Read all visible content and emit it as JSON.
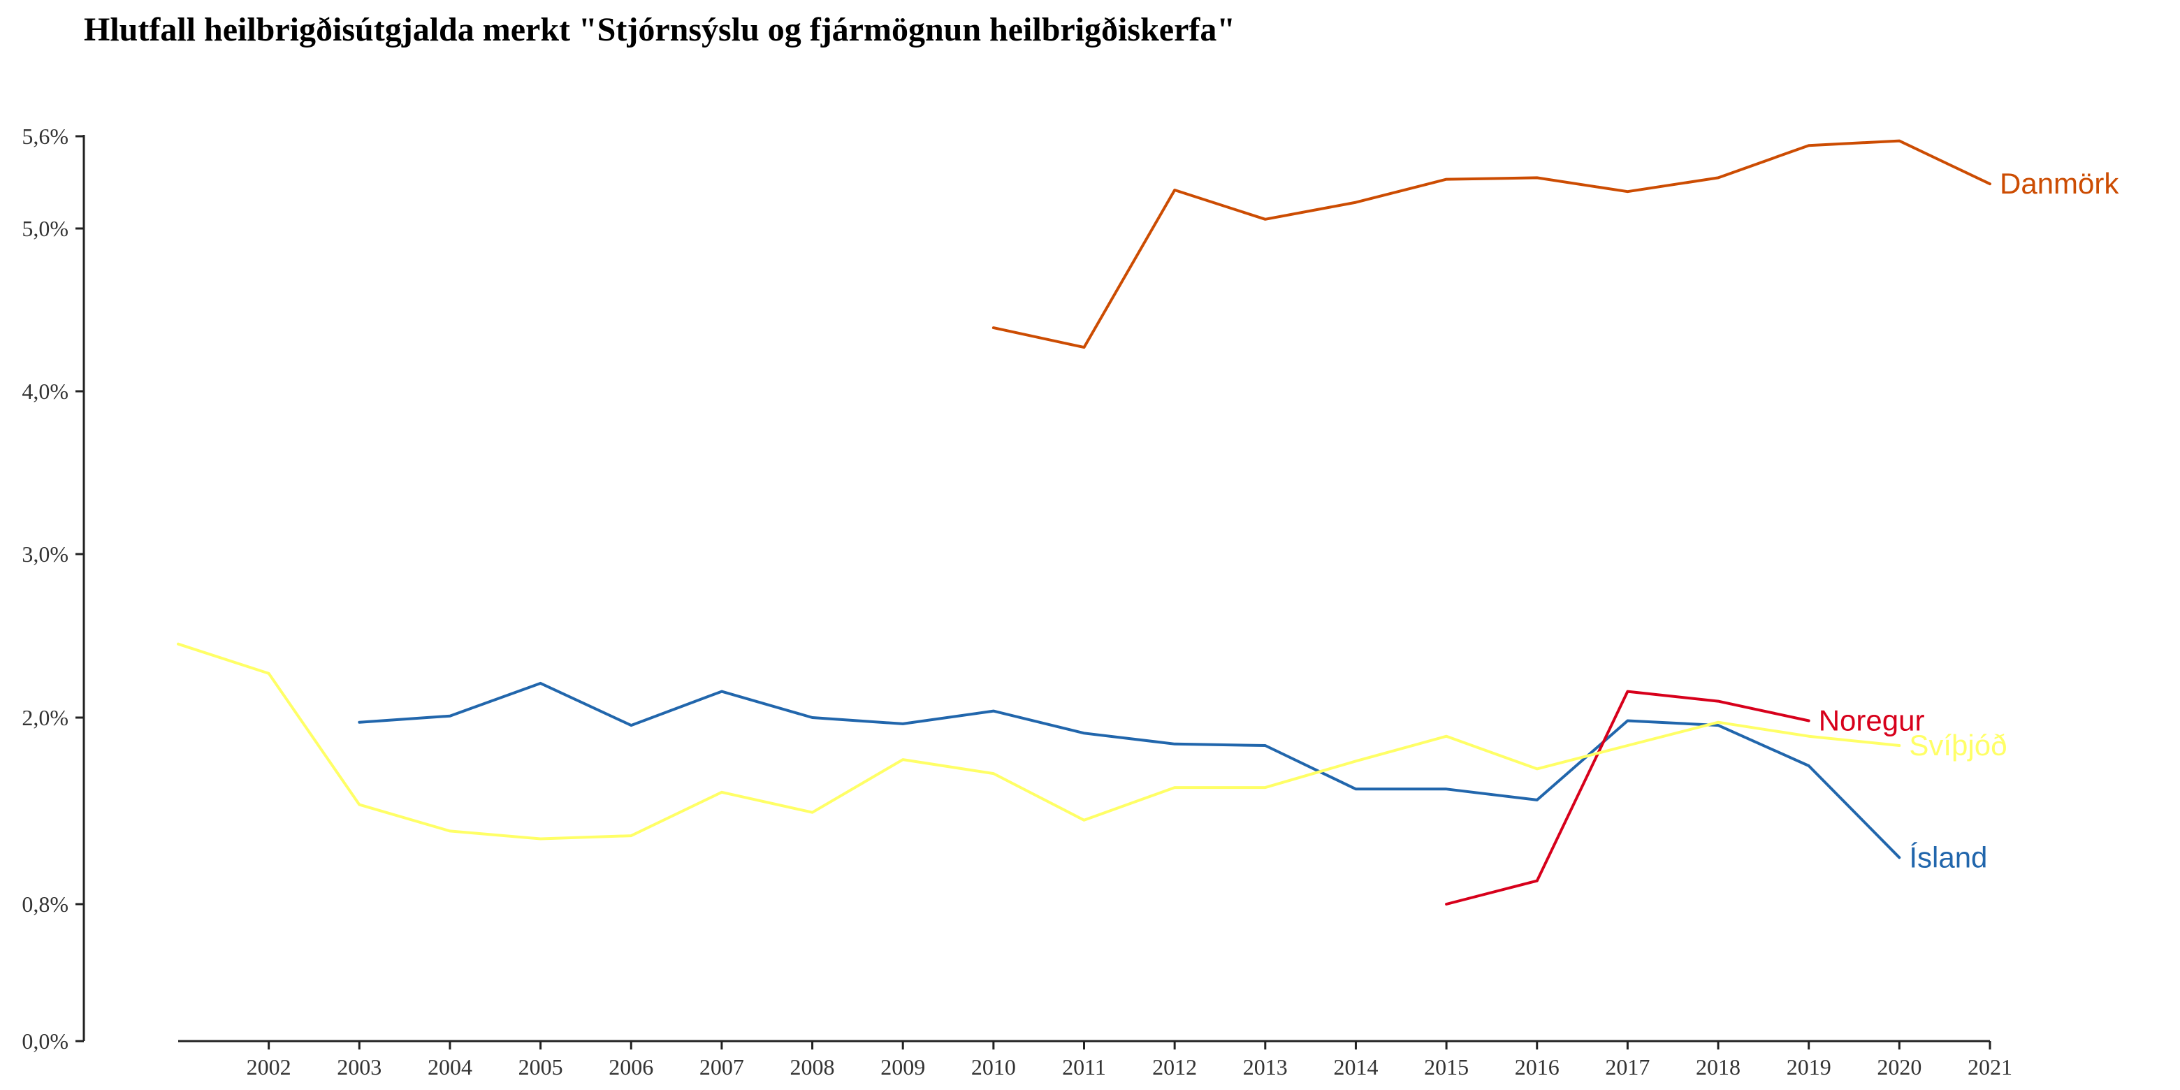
{
  "chart_data": {
    "type": "line",
    "title": "Hlutfall heilbrigðisútgjalda merkt \"Stjórnsýslu og fjármögnun heilbrigðiskerfa\"",
    "xlabel": "",
    "ylabel": "",
    "x": [
      2001,
      2002,
      2003,
      2004,
      2005,
      2006,
      2007,
      2008,
      2009,
      2010,
      2011,
      2012,
      2013,
      2014,
      2015,
      2016,
      2017,
      2018,
      2019,
      2020,
      2021
    ],
    "x_tick_labels": [
      "2002",
      "2003",
      "2004",
      "2005",
      "2006",
      "2007",
      "2008",
      "2009",
      "2010",
      "2011",
      "2012",
      "2013",
      "2014",
      "2015",
      "2016",
      "2017",
      "2018",
      "2019",
      "2020",
      "2021"
    ],
    "y_ticks": [
      0.0,
      0.8,
      2.0,
      3.0,
      4.0,
      5.0,
      5.6
    ],
    "y_tick_labels": [
      "0,0%",
      "0,8%",
      "2,0%",
      "3,0%",
      "4,0%",
      "5,0%",
      "5,6%"
    ],
    "grid": false,
    "legend": "direct labels at line ends",
    "series": [
      {
        "name": "Danmörk",
        "color": "#cc4c02",
        "points": [
          [
            2010,
            4.39
          ],
          [
            2011,
            4.27
          ],
          [
            2012,
            5.25
          ],
          [
            2013,
            5.06
          ],
          [
            2014,
            5.17
          ],
          [
            2015,
            5.32
          ],
          [
            2016,
            5.33
          ],
          [
            2017,
            5.24
          ],
          [
            2018,
            5.33
          ],
          [
            2019,
            5.54
          ],
          [
            2020,
            5.57
          ],
          [
            2021,
            5.29
          ]
        ]
      },
      {
        "name": "Ísland",
        "color": "#2166ac",
        "points": [
          [
            2003,
            1.97
          ],
          [
            2004,
            2.01
          ],
          [
            2005,
            2.21
          ],
          [
            2006,
            1.95
          ],
          [
            2007,
            2.16
          ],
          [
            2008,
            2.0
          ],
          [
            2009,
            1.96
          ],
          [
            2010,
            2.04
          ],
          [
            2011,
            1.9
          ],
          [
            2012,
            1.83
          ],
          [
            2013,
            1.82
          ],
          [
            2014,
            1.54
          ],
          [
            2015,
            1.54
          ],
          [
            2016,
            1.47
          ],
          [
            2017,
            1.98
          ],
          [
            2018,
            1.95
          ],
          [
            2019,
            1.69
          ],
          [
            2020,
            1.1
          ]
        ]
      },
      {
        "name": "Noregur",
        "color": "#d7001b",
        "points": [
          [
            2015,
            0.8
          ],
          [
            2016,
            0.95
          ],
          [
            2017,
            2.16
          ],
          [
            2018,
            2.1
          ],
          [
            2019,
            1.98
          ]
        ]
      },
      {
        "name": "Svíþjóð",
        "color": "#ffff66",
        "points": [
          [
            2001,
            2.45
          ],
          [
            2002,
            2.27
          ],
          [
            2003,
            1.44
          ],
          [
            2004,
            1.27
          ],
          [
            2005,
            1.22
          ],
          [
            2006,
            1.24
          ],
          [
            2007,
            1.52
          ],
          [
            2008,
            1.39
          ],
          [
            2009,
            1.73
          ],
          [
            2010,
            1.64
          ],
          [
            2011,
            1.34
          ],
          [
            2012,
            1.55
          ],
          [
            2013,
            1.55
          ],
          [
            2014,
            1.72
          ],
          [
            2015,
            1.88
          ],
          [
            2016,
            1.67
          ],
          [
            2017,
            1.82
          ],
          [
            2018,
            1.97
          ],
          [
            2019,
            1.88
          ],
          [
            2020,
            1.82
          ]
        ]
      }
    ]
  }
}
